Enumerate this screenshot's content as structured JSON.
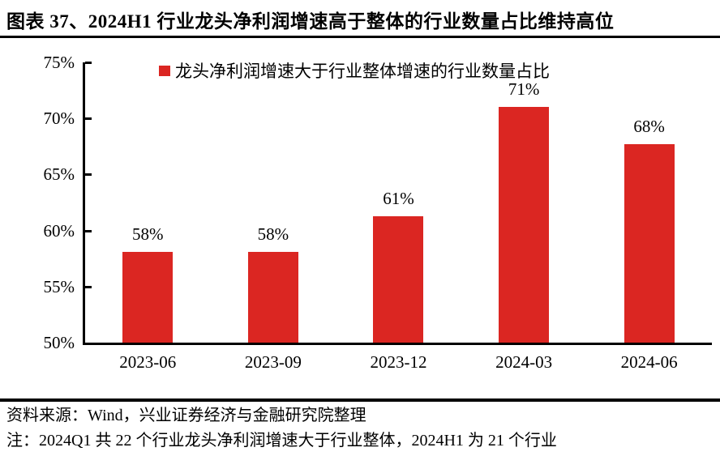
{
  "title": "图表 37、2024H1 行业龙头净利润增速高于整体的行业数量占比维持高位",
  "chart_data": {
    "type": "bar",
    "legend": "龙头净利润增速大于行业整体增速的行业数量占比",
    "legend_position": "top",
    "categories": [
      "2023-06",
      "2023-09",
      "2023-12",
      "2024-03",
      "2024-06"
    ],
    "values": [
      58.1,
      58.1,
      61.3,
      71.0,
      67.7
    ],
    "bar_labels": [
      "58%",
      "58%",
      "61%",
      "71%",
      "68%"
    ],
    "ylim": [
      50,
      75
    ],
    "y_tick_labels": [
      "75%",
      "70%",
      "65%",
      "60%",
      "55%",
      "50%"
    ],
    "grid": false,
    "bar_color": "#DB2622",
    "axis_color": "#000000"
  },
  "footer": {
    "source": "资料来源：Wind，兴业证券经济与金融研究院整理",
    "note": "注：2024Q1 共 22 个行业龙头净利润增速大于行业整体，2024H1 为 21 个行业"
  }
}
